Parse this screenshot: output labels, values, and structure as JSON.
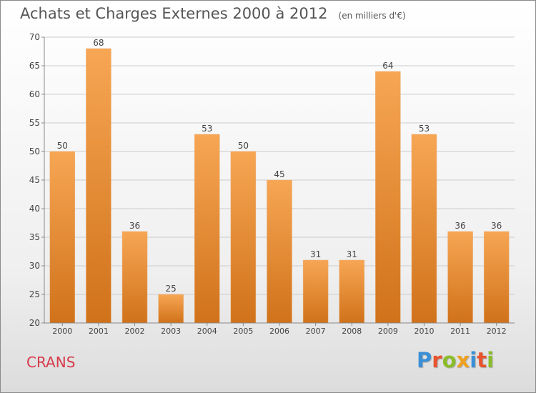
{
  "title": "Achats et Charges Externes 2000 à 2012",
  "subtitle": "(en milliers d'€)",
  "location": "CRANS",
  "brand": {
    "text": "Proxiti",
    "letter_colors": [
      "#3a8fd6",
      "#e8542e",
      "#8bbd2a",
      "#f0a020",
      "#3a8fd6",
      "#e8542e",
      "#8bbd2a"
    ]
  },
  "colors": {
    "bar_light": "#f7a654",
    "bar_dark": "#d0721a",
    "grid": "#cccccc",
    "axis_text": "#444444",
    "title": "#555555",
    "location": "#d63a4a"
  },
  "chart_data": {
    "type": "bar",
    "categories": [
      "2000",
      "2001",
      "2002",
      "2003",
      "2004",
      "2005",
      "2006",
      "2007",
      "2008",
      "2009",
      "2010",
      "2011",
      "2012"
    ],
    "values": [
      50,
      68,
      36,
      25,
      53,
      50,
      45,
      31,
      31,
      64,
      53,
      36,
      36
    ],
    "ylim": [
      20,
      70
    ],
    "yticks": [
      20,
      25,
      30,
      35,
      40,
      45,
      50,
      55,
      60,
      65,
      70
    ],
    "grid": true,
    "data_labels": true
  }
}
